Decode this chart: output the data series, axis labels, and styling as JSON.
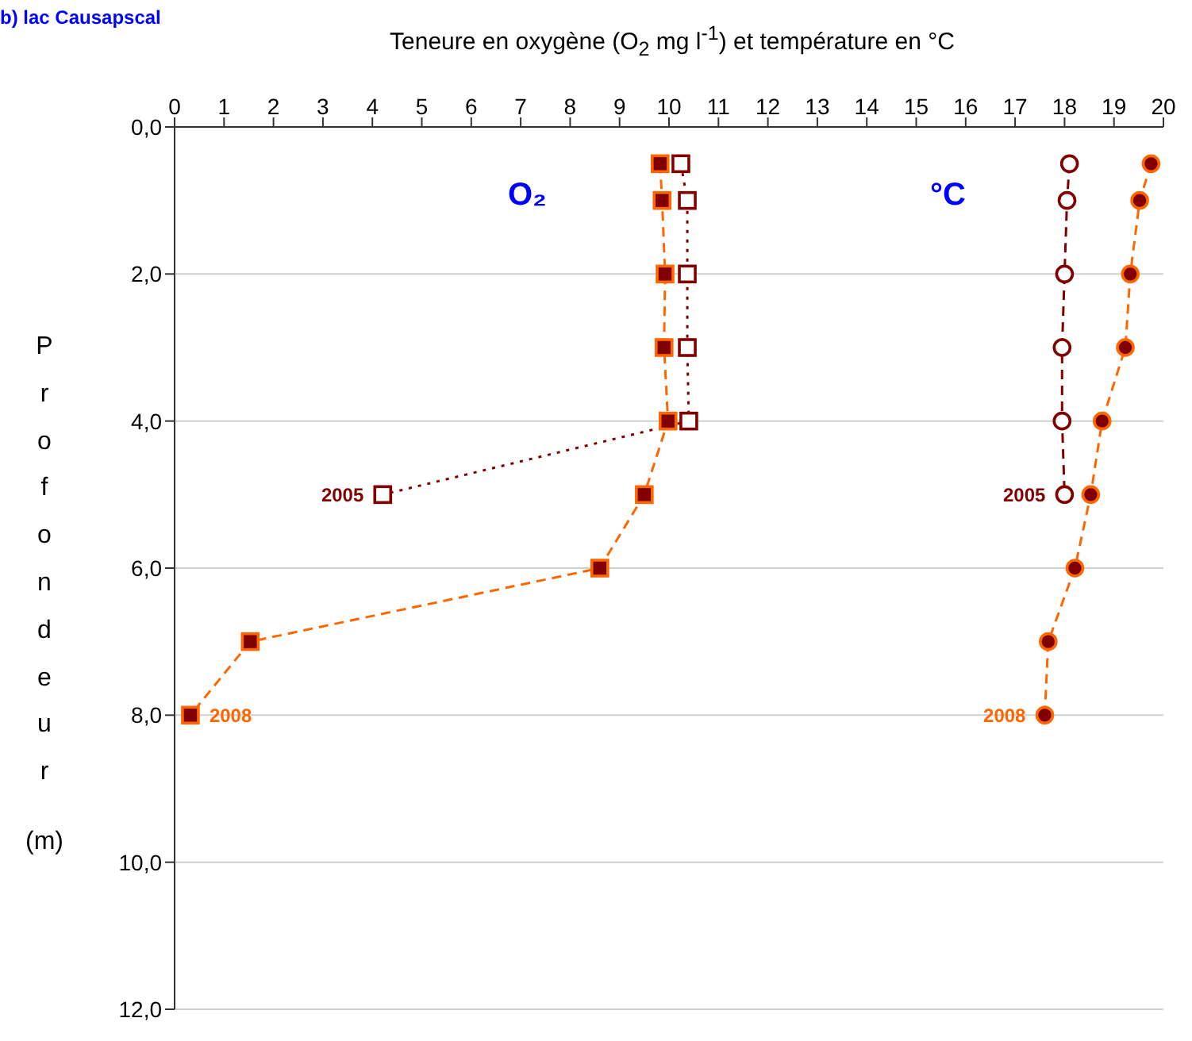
{
  "chart_data": {
    "type": "line",
    "title": "b) lac Causapscal",
    "xlabel": "Teneure en oxygène (O$_{2}$ mg l$^{-1}$) et température en °C",
    "ylabel": "Profondeur (m)",
    "xlim": [
      0,
      20
    ],
    "xticks": [
      0,
      1,
      2,
      3,
      4,
      5,
      6,
      7,
      8,
      9,
      10,
      11,
      12,
      13,
      14,
      15,
      16,
      17,
      18,
      19,
      20
    ],
    "ylim": [
      12,
      0
    ],
    "yticks": [
      {
        "value": 0,
        "label": "0,0"
      },
      {
        "value": 2,
        "label": "2,0"
      },
      {
        "value": 4,
        "label": "4,0"
      },
      {
        "value": 6,
        "label": "6,0"
      },
      {
        "value": 8,
        "label": "8,0"
      },
      {
        "value": 10,
        "label": "10,0"
      },
      {
        "value": 12,
        "label": "12,0"
      }
    ],
    "grid": "y",
    "series": [
      {
        "name": "2005",
        "color": "#800000",
        "colors": [
          "#ffffff",
          "#ffffff",
          "#ffffff",
          "#ffffff",
          "#ffffff",
          "#ffffff"
        ],
        "marker": "square",
        "line_style": "dotted",
        "x": [
          10.24,
          10.37,
          10.37,
          10.37,
          10.4,
          4.21
        ],
        "values": [
          0.5,
          1,
          2,
          3,
          4,
          5
        ]
      },
      {
        "name": "2008",
        "color": "#ff6600",
        "colors": [
          "#800000",
          "#800000",
          "#800000",
          "#800000",
          "#800000",
          "#800000",
          "#800000",
          "#800000",
          "#800000"
        ],
        "marker": "square",
        "line_style": "dashed",
        "x": [
          9.82,
          9.86,
          9.92,
          9.9,
          9.98,
          9.5,
          8.6,
          1.53,
          0.32
        ],
        "values": [
          0.5,
          1,
          2,
          3,
          4,
          5,
          6,
          7,
          8
        ]
      },
      {
        "name": "2005",
        "color": "#800000",
        "colors": [
          "#ffffff",
          "#ffffff",
          "#ffffff",
          "#ffffff",
          "#ffffff",
          "#ffffff"
        ],
        "marker": "circle",
        "line_style": "dashed",
        "x": [
          18.1,
          18.05,
          18.0,
          17.95,
          17.95,
          18.0
        ],
        "values": [
          0.5,
          1,
          2,
          3,
          4,
          5
        ]
      },
      {
        "name": "2008",
        "color": "#ff6600",
        "colors": [
          "#800000",
          "#800000",
          "#800000",
          "#800000",
          "#800000",
          "#800000",
          "#800000",
          "#800000",
          "#800000"
        ],
        "marker": "circle",
        "line_style": "dashed",
        "x": [
          19.75,
          19.52,
          19.33,
          19.23,
          18.76,
          18.53,
          18.21,
          17.67,
          17.6
        ],
        "values": [
          0.5,
          1,
          2,
          3,
          4,
          5,
          6,
          7,
          8
        ]
      }
    ],
    "annotations": [
      "O₂",
      "°C"
    ]
  }
}
